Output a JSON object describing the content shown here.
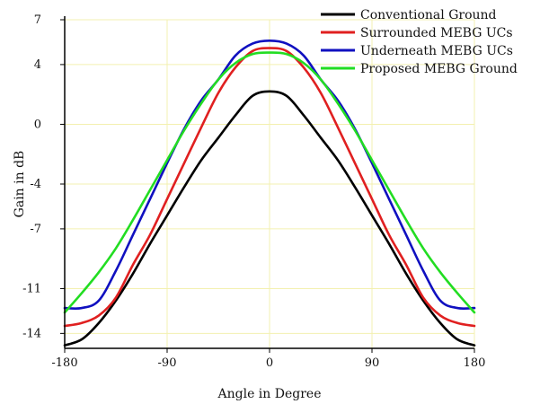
{
  "chart_data": {
    "type": "line",
    "title": "",
    "xlabel": "Angle in Degree",
    "ylabel": "Gain in dB",
    "xlim": [
      -180,
      180
    ],
    "ylim": [
      -15,
      7
    ],
    "x_ticks": [
      -180,
      -90,
      0,
      90,
      180
    ],
    "y_ticks": [
      7,
      4,
      0,
      -4,
      -7,
      -11,
      -14
    ],
    "grid": true,
    "grid_color": "#f3f0b0",
    "legend_position": "top-right",
    "x": [
      -180,
      -165,
      -150,
      -135,
      -120,
      -105,
      -90,
      -75,
      -60,
      -45,
      -30,
      -15,
      0,
      15,
      30,
      45,
      60,
      75,
      90,
      105,
      120,
      135,
      150,
      165,
      180
    ],
    "series": [
      {
        "name": "Conventional Ground",
        "color": "#000000",
        "values": [
          -14.8,
          -14.4,
          -13.3,
          -11.8,
          -10.0,
          -8.0,
          -6.1,
          -4.2,
          -2.4,
          -0.9,
          0.6,
          1.9,
          2.2,
          1.9,
          0.6,
          -0.9,
          -2.4,
          -4.2,
          -6.1,
          -8.0,
          -10.0,
          -11.8,
          -13.3,
          -14.4,
          -14.8
        ]
      },
      {
        "name": "Surrounded MEBG UCs",
        "color": "#e02020",
        "values": [
          -13.5,
          -13.3,
          -12.8,
          -11.6,
          -9.4,
          -7.4,
          -5.0,
          -2.6,
          -0.2,
          2.1,
          3.8,
          4.9,
          5.1,
          4.9,
          3.8,
          2.1,
          -0.2,
          -2.6,
          -5.0,
          -7.4,
          -9.4,
          -11.6,
          -12.8,
          -13.3,
          -13.5
        ]
      },
      {
        "name": "Underneath MEBG UCs",
        "color": "#1010c0",
        "values": [
          -12.3,
          -12.3,
          -11.8,
          -9.8,
          -7.4,
          -5.0,
          -2.6,
          -0.3,
          1.6,
          3.0,
          4.6,
          5.4,
          5.6,
          5.4,
          4.6,
          3.0,
          1.6,
          -0.3,
          -2.6,
          -5.0,
          -7.4,
          -9.8,
          -11.8,
          -12.3,
          -12.3
        ]
      },
      {
        "name": "Proposed MEBG Ground",
        "color": "#22dd22",
        "values": [
          -12.6,
          -11.3,
          -9.9,
          -8.3,
          -6.4,
          -4.4,
          -2.4,
          -0.4,
          1.4,
          3.0,
          4.1,
          4.7,
          4.8,
          4.7,
          4.1,
          3.0,
          1.4,
          -0.4,
          -2.4,
          -4.4,
          -6.4,
          -8.3,
          -9.9,
          -11.3,
          -12.6
        ]
      }
    ]
  }
}
